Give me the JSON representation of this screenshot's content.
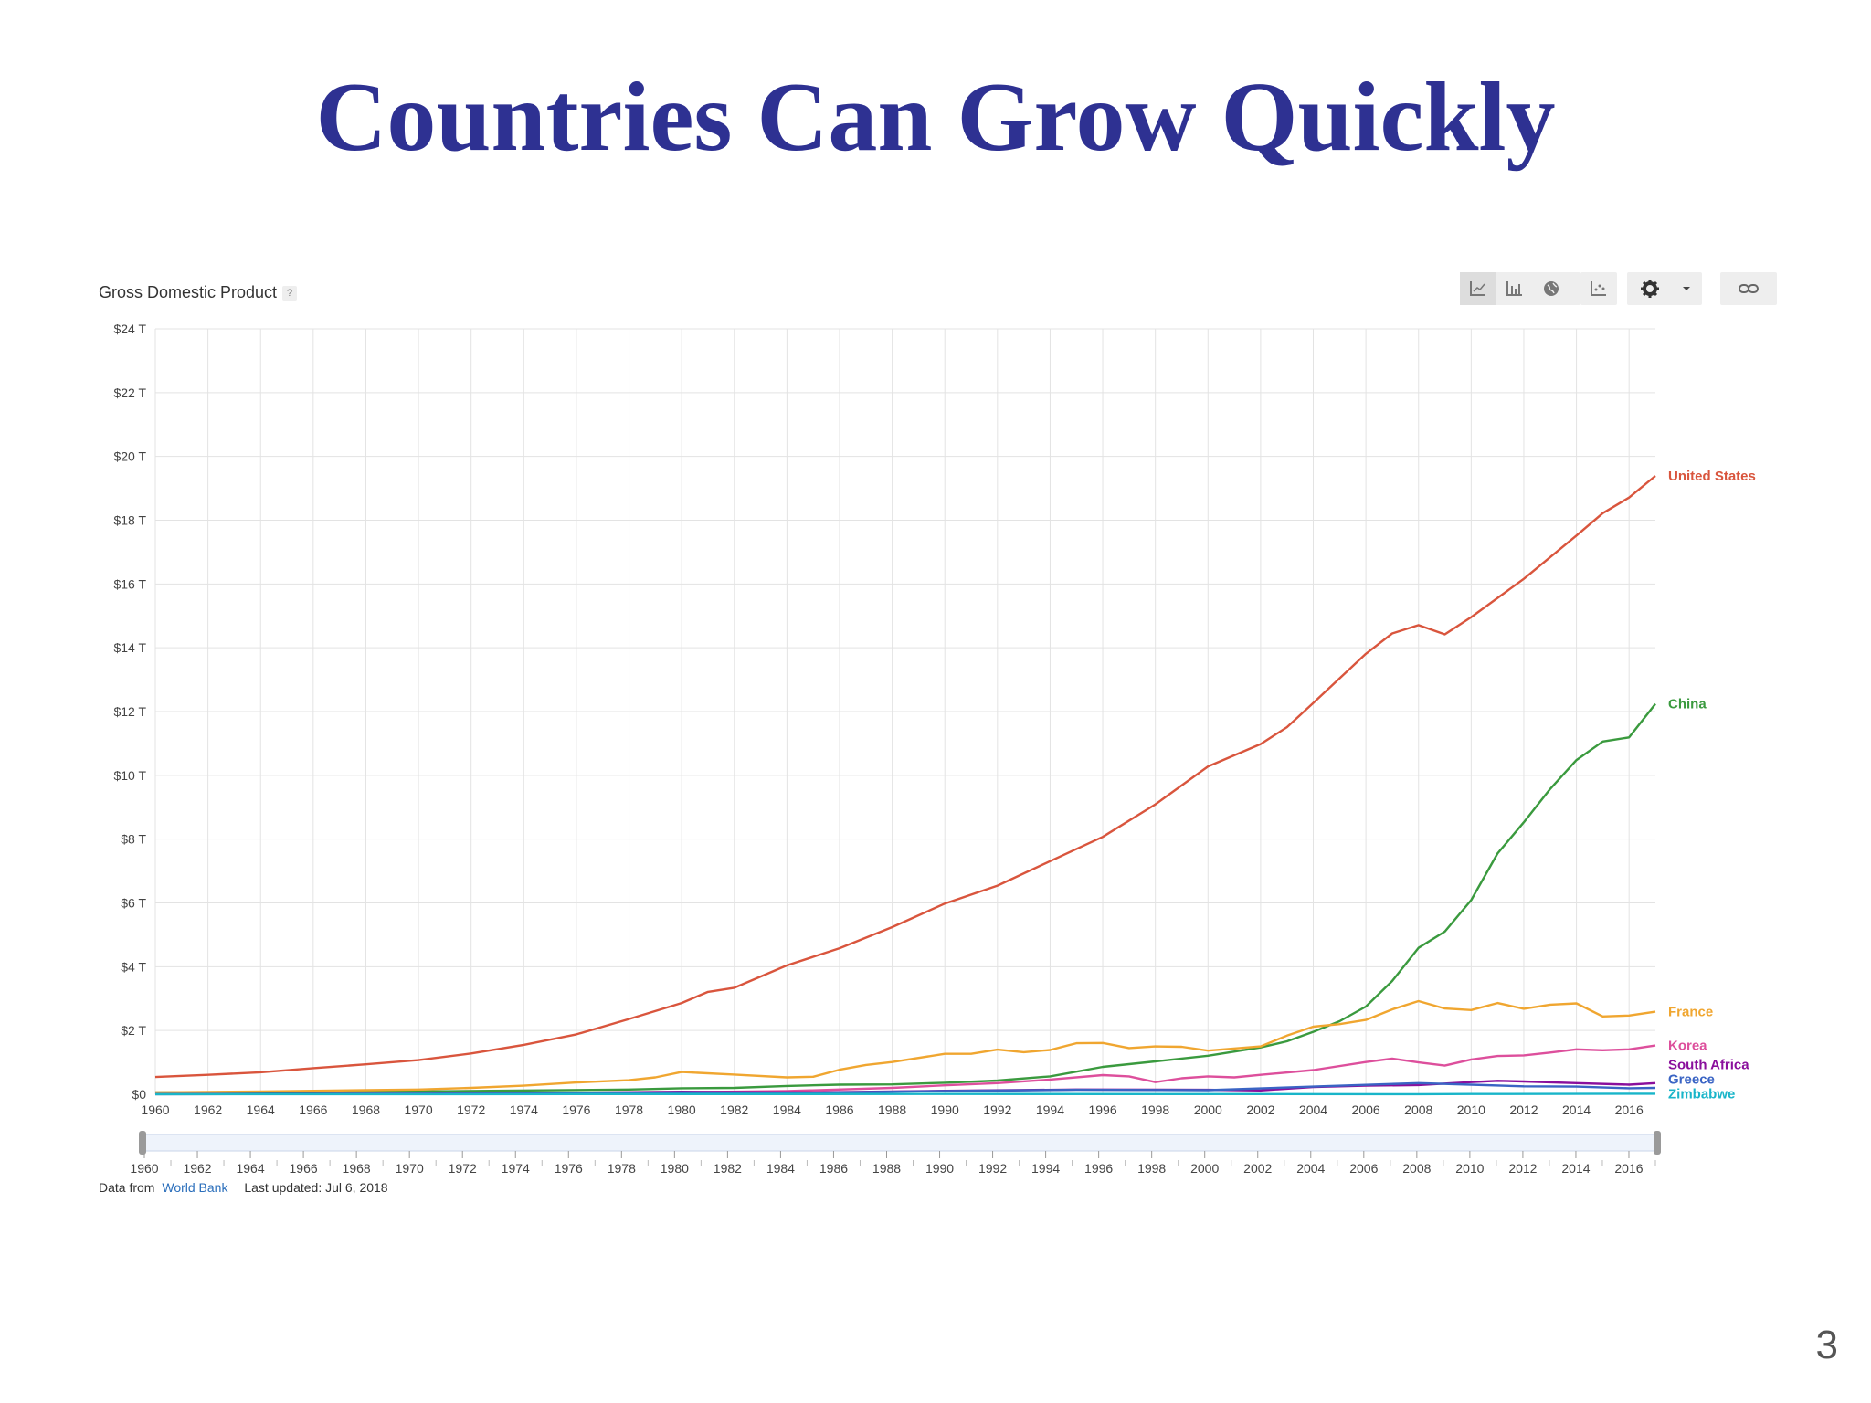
{
  "slide": {
    "title": "Countries Can Grow Quickly",
    "page_number": "3"
  },
  "toolbar": {
    "icons": [
      "line-chart-icon",
      "bar-chart-icon",
      "map-icon",
      "scatter-icon",
      "gear-icon",
      "link-icon"
    ]
  },
  "footer": {
    "prefix": "Data from",
    "link_text": "World Bank",
    "updated": "Last updated: Jul 6, 2018"
  },
  "colors": {
    "United States": "#d9553d",
    "China": "#3a9a3e",
    "France": "#f0a630",
    "Korea": "#dd4f9c",
    "South Africa": "#8a0f9c",
    "Greece": "#3a64c4",
    "Zimbabwe": "#19b5c9",
    "grid": "#e3e3e3"
  },
  "chart_data": {
    "type": "line",
    "title": "Gross Domestic Product",
    "xlabel": "",
    "ylabel": "",
    "ylim": [
      0,
      24
    ],
    "yticks": [
      "$0",
      "$2 T",
      "$4 T",
      "$6 T",
      "$8 T",
      "$10 T",
      "$12 T",
      "$14 T",
      "$16 T",
      "$18 T",
      "$20 T",
      "$22 T",
      "$24 T"
    ],
    "xlim": [
      1960,
      2017
    ],
    "xticks": [
      "1960",
      "1962",
      "1964",
      "1966",
      "1968",
      "1970",
      "1972",
      "1974",
      "1976",
      "1978",
      "1980",
      "1982",
      "1984",
      "1986",
      "1988",
      "1990",
      "1992",
      "1994",
      "1996",
      "1998",
      "2000",
      "2002",
      "2004",
      "2006",
      "2008",
      "2010",
      "2012",
      "2014",
      "2016"
    ],
    "grid": true,
    "legend": "right end labels",
    "series": [
      {
        "name": "United States",
        "points": [
          [
            1960,
            0.54
          ],
          [
            1962,
            0.61
          ],
          [
            1964,
            0.69
          ],
          [
            1966,
            0.82
          ],
          [
            1968,
            0.94
          ],
          [
            1970,
            1.07
          ],
          [
            1972,
            1.28
          ],
          [
            1974,
            1.55
          ],
          [
            1976,
            1.88
          ],
          [
            1978,
            2.36
          ],
          [
            1980,
            2.86
          ],
          [
            1981,
            3.21
          ],
          [
            1982,
            3.34
          ],
          [
            1984,
            4.04
          ],
          [
            1986,
            4.58
          ],
          [
            1988,
            5.24
          ],
          [
            1990,
            5.98
          ],
          [
            1992,
            6.54
          ],
          [
            1994,
            7.31
          ],
          [
            1996,
            8.07
          ],
          [
            1998,
            9.09
          ],
          [
            2000,
            10.28
          ],
          [
            2002,
            10.98
          ],
          [
            2003,
            11.51
          ],
          [
            2004,
            12.27
          ],
          [
            2006,
            13.81
          ],
          [
            2007,
            14.45
          ],
          [
            2008,
            14.71
          ],
          [
            2009,
            14.42
          ],
          [
            2010,
            14.96
          ],
          [
            2012,
            16.16
          ],
          [
            2014,
            17.52
          ],
          [
            2015,
            18.22
          ],
          [
            2016,
            18.71
          ],
          [
            2017,
            19.39
          ]
        ]
      },
      {
        "name": "China",
        "points": [
          [
            1960,
            0.06
          ],
          [
            1970,
            0.09
          ],
          [
            1978,
            0.15
          ],
          [
            1980,
            0.19
          ],
          [
            1982,
            0.2
          ],
          [
            1984,
            0.26
          ],
          [
            1986,
            0.3
          ],
          [
            1988,
            0.31
          ],
          [
            1990,
            0.36
          ],
          [
            1992,
            0.43
          ],
          [
            1994,
            0.56
          ],
          [
            1996,
            0.86
          ],
          [
            1998,
            1.03
          ],
          [
            2000,
            1.21
          ],
          [
            2002,
            1.47
          ],
          [
            2003,
            1.66
          ],
          [
            2004,
            1.96
          ],
          [
            2005,
            2.29
          ],
          [
            2006,
            2.75
          ],
          [
            2007,
            3.55
          ],
          [
            2008,
            4.59
          ],
          [
            2009,
            5.1
          ],
          [
            2010,
            6.09
          ],
          [
            2011,
            7.55
          ],
          [
            2012,
            8.53
          ],
          [
            2013,
            9.57
          ],
          [
            2014,
            10.48
          ],
          [
            2015,
            11.06
          ],
          [
            2016,
            11.19
          ],
          [
            2017,
            12.24
          ]
        ]
      },
      {
        "name": "France",
        "points": [
          [
            1960,
            0.06
          ],
          [
            1964,
            0.09
          ],
          [
            1968,
            0.13
          ],
          [
            1970,
            0.15
          ],
          [
            1972,
            0.2
          ],
          [
            1974,
            0.27
          ],
          [
            1976,
            0.37
          ],
          [
            1978,
            0.44
          ],
          [
            1979,
            0.53
          ],
          [
            1980,
            0.7
          ],
          [
            1982,
            0.62
          ],
          [
            1984,
            0.53
          ],
          [
            1985,
            0.55
          ],
          [
            1986,
            0.77
          ],
          [
            1987,
            0.92
          ],
          [
            1988,
            1.01
          ],
          [
            1990,
            1.27
          ],
          [
            1991,
            1.27
          ],
          [
            1992,
            1.4
          ],
          [
            1993,
            1.32
          ],
          [
            1994,
            1.39
          ],
          [
            1995,
            1.6
          ],
          [
            1996,
            1.61
          ],
          [
            1997,
            1.45
          ],
          [
            1998,
            1.5
          ],
          [
            1999,
            1.49
          ],
          [
            2000,
            1.37
          ],
          [
            2002,
            1.5
          ],
          [
            2003,
            1.84
          ],
          [
            2004,
            2.12
          ],
          [
            2005,
            2.2
          ],
          [
            2006,
            2.33
          ],
          [
            2007,
            2.66
          ],
          [
            2008,
            2.92
          ],
          [
            2009,
            2.69
          ],
          [
            2010,
            2.64
          ],
          [
            2011,
            2.86
          ],
          [
            2012,
            2.68
          ],
          [
            2013,
            2.81
          ],
          [
            2014,
            2.85
          ],
          [
            2015,
            2.44
          ],
          [
            2016,
            2.47
          ],
          [
            2017,
            2.59
          ]
        ]
      },
      {
        "name": "Korea",
        "points": [
          [
            1960,
            0.004
          ],
          [
            1970,
            0.009
          ],
          [
            1976,
            0.03
          ],
          [
            1980,
            0.065
          ],
          [
            1984,
            0.1
          ],
          [
            1988,
            0.2
          ],
          [
            1990,
            0.28
          ],
          [
            1992,
            0.35
          ],
          [
            1994,
            0.46
          ],
          [
            1996,
            0.6
          ],
          [
            1997,
            0.56
          ],
          [
            1998,
            0.38
          ],
          [
            1999,
            0.5
          ],
          [
            2000,
            0.56
          ],
          [
            2001,
            0.53
          ],
          [
            2002,
            0.61
          ],
          [
            2004,
            0.76
          ],
          [
            2006,
            1.01
          ],
          [
            2007,
            1.12
          ],
          [
            2008,
            1.0
          ],
          [
            2009,
            0.9
          ],
          [
            2010,
            1.09
          ],
          [
            2011,
            1.2
          ],
          [
            2012,
            1.22
          ],
          [
            2013,
            1.31
          ],
          [
            2014,
            1.41
          ],
          [
            2015,
            1.38
          ],
          [
            2016,
            1.41
          ],
          [
            2017,
            1.53
          ]
        ]
      },
      {
        "name": "South Africa",
        "points": [
          [
            1960,
            0.008
          ],
          [
            1970,
            0.02
          ],
          [
            1975,
            0.04
          ],
          [
            1980,
            0.08
          ],
          [
            1985,
            0.06
          ],
          [
            1990,
            0.11
          ],
          [
            1995,
            0.15
          ],
          [
            2000,
            0.14
          ],
          [
            2002,
            0.12
          ],
          [
            2004,
            0.23
          ],
          [
            2006,
            0.27
          ],
          [
            2008,
            0.29
          ],
          [
            2010,
            0.38
          ],
          [
            2011,
            0.42
          ],
          [
            2012,
            0.4
          ],
          [
            2014,
            0.35
          ],
          [
            2016,
            0.3
          ],
          [
            2017,
            0.35
          ]
        ]
      },
      {
        "name": "Greece",
        "points": [
          [
            1960,
            0.005
          ],
          [
            1970,
            0.013
          ],
          [
            1975,
            0.02
          ],
          [
            1980,
            0.056
          ],
          [
            1985,
            0.048
          ],
          [
            1990,
            0.1
          ],
          [
            1995,
            0.14
          ],
          [
            2000,
            0.13
          ],
          [
            2004,
            0.24
          ],
          [
            2008,
            0.35
          ],
          [
            2010,
            0.3
          ],
          [
            2012,
            0.25
          ],
          [
            2014,
            0.24
          ],
          [
            2016,
            0.19
          ],
          [
            2017,
            0.2
          ]
        ]
      },
      {
        "name": "Zimbabwe",
        "points": [
          [
            1960,
            0.001
          ],
          [
            1980,
            0.007
          ],
          [
            1990,
            0.009
          ],
          [
            2000,
            0.007
          ],
          [
            2008,
            0.004
          ],
          [
            2010,
            0.01
          ],
          [
            2017,
            0.017
          ]
        ]
      }
    ]
  }
}
